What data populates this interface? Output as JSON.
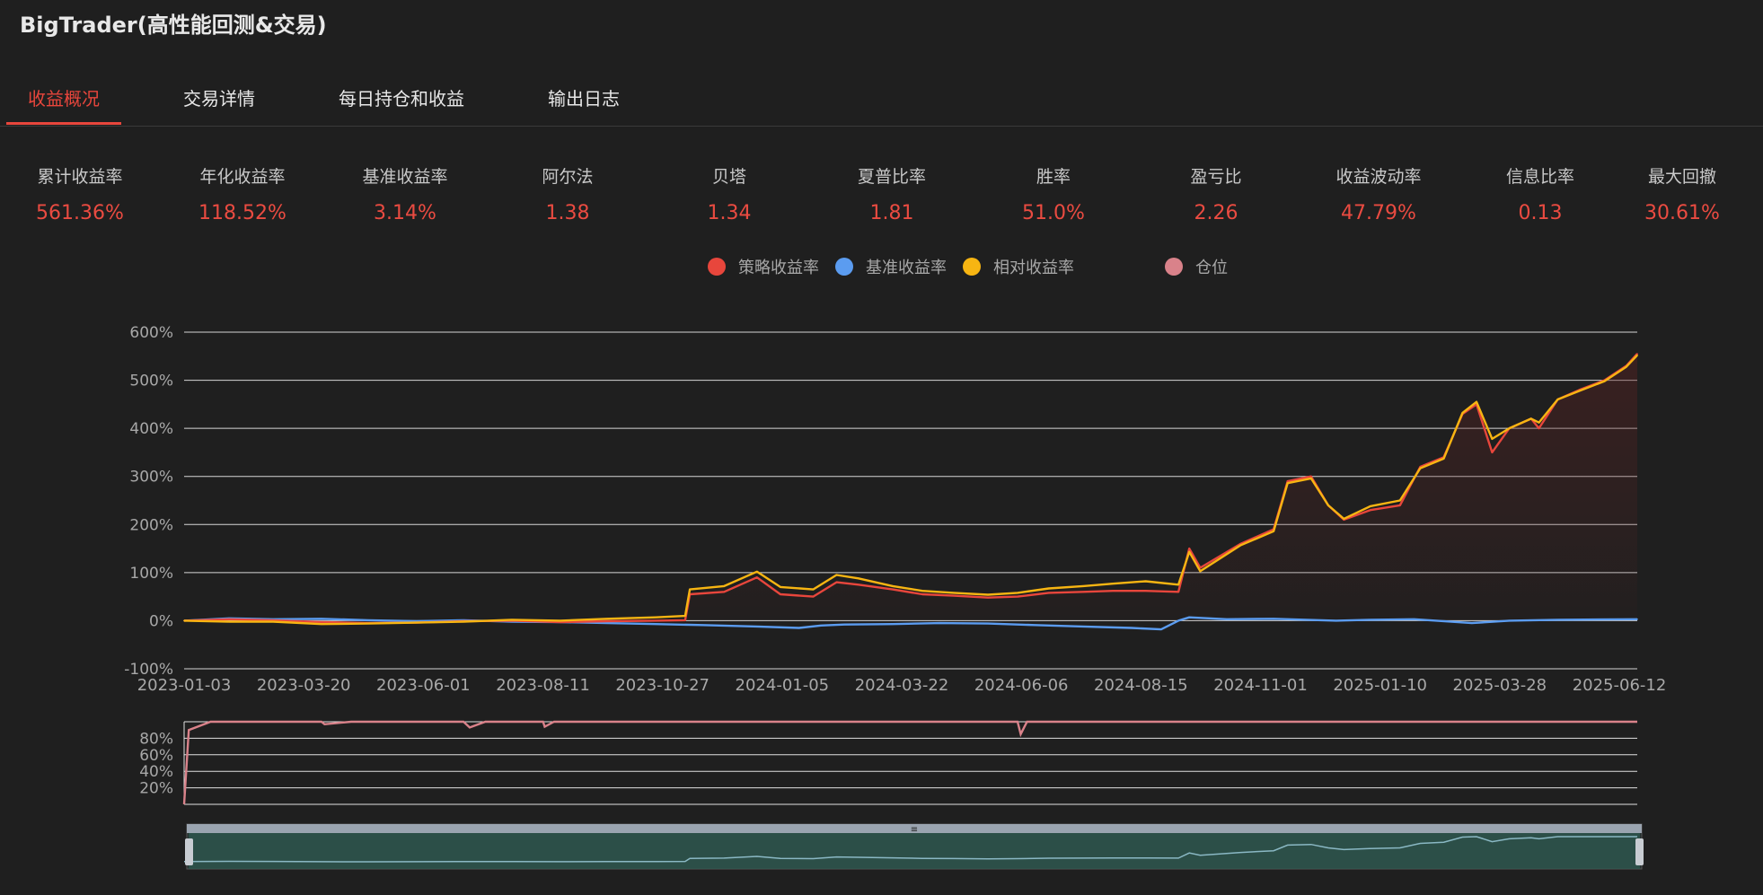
{
  "app": {
    "title": "BigTrader(高性能回测&交易)"
  },
  "tabs": [
    {
      "label": "收益概况",
      "active": true
    },
    {
      "label": "交易详情",
      "active": false
    },
    {
      "label": "每日持仓和收益",
      "active": false
    },
    {
      "label": "输出日志",
      "active": false
    }
  ],
  "metrics": [
    {
      "label": "累计收益率",
      "value": "561.36%"
    },
    {
      "label": "年化收益率",
      "value": "118.52%"
    },
    {
      "label": "基准收益率",
      "value": "3.14%"
    },
    {
      "label": "阿尔法",
      "value": "1.38"
    },
    {
      "label": "贝塔",
      "value": "1.34"
    },
    {
      "label": "夏普比率",
      "value": "1.81"
    },
    {
      "label": "胜率",
      "value": "51.0%"
    },
    {
      "label": "盈亏比",
      "value": "2.26"
    },
    {
      "label": "收益波动率",
      "value": "47.79%"
    },
    {
      "label": "信息比率",
      "value": "0.13"
    },
    {
      "label": "最大回撤",
      "value": "30.61%"
    }
  ],
  "legend": [
    {
      "label": "策略收益率",
      "color": "#e8463c"
    },
    {
      "label": "基准收益率",
      "color": "#5b9cf0"
    },
    {
      "label": "相对收益率",
      "color": "#f7b512"
    },
    {
      "label": "仓位",
      "color": "#d9828a"
    }
  ],
  "chart_data": [
    {
      "type": "line",
      "ylim": [
        -100,
        600
      ],
      "yticks": [
        "-100%",
        "0%",
        "100%",
        "200%",
        "300%",
        "400%",
        "500%",
        "600%"
      ],
      "xticks": [
        "2023-01-03",
        "2023-03-20",
        "2023-06-01",
        "2023-08-11",
        "2023-10-27",
        "2024-01-05",
        "2024-03-22",
        "2024-06-06",
        "2024-08-15",
        "2024-11-01",
        "2025-01-10",
        "2025-03-28",
        "2025-06-12"
      ],
      "x_range": [
        "2023-01-03",
        "2025-07-22"
      ],
      "series": [
        {
          "name": "策略收益率",
          "color": "#e8463c",
          "points": [
            [
              "2023-01-03",
              0
            ],
            [
              "2023-02-01",
              3
            ],
            [
              "2023-03-01",
              1
            ],
            [
              "2023-04-01",
              -3
            ],
            [
              "2023-05-01",
              -5
            ],
            [
              "2023-06-01",
              -4
            ],
            [
              "2023-07-01",
              -1
            ],
            [
              "2023-08-01",
              0
            ],
            [
              "2023-09-01",
              -3
            ],
            [
              "2023-10-01",
              -1
            ],
            [
              "2023-11-01",
              0
            ],
            [
              "2023-11-20",
              1
            ],
            [
              "2023-11-23",
              55
            ],
            [
              "2023-12-15",
              60
            ],
            [
              "2024-01-05",
              90
            ],
            [
              "2024-01-20",
              55
            ],
            [
              "2024-02-10",
              50
            ],
            [
              "2024-02-25",
              80
            ],
            [
              "2024-03-10",
              75
            ],
            [
              "2024-04-01",
              65
            ],
            [
              "2024-04-20",
              55
            ],
            [
              "2024-05-10",
              52
            ],
            [
              "2024-06-01",
              48
            ],
            [
              "2024-06-20",
              50
            ],
            [
              "2024-07-10",
              58
            ],
            [
              "2024-08-01",
              60
            ],
            [
              "2024-08-20",
              62
            ],
            [
              "2024-09-10",
              62
            ],
            [
              "2024-10-01",
              60
            ],
            [
              "2024-10-08",
              150
            ],
            [
              "2024-10-15",
              110
            ],
            [
              "2024-11-10",
              160
            ],
            [
              "2024-12-01",
              190
            ],
            [
              "2024-12-10",
              290
            ],
            [
              "2024-12-25",
              300
            ],
            [
              "2025-01-05",
              240
            ],
            [
              "2025-01-15",
              210
            ],
            [
              "2025-02-01",
              230
            ],
            [
              "2025-02-20",
              240
            ],
            [
              "2025-03-05",
              320
            ],
            [
              "2025-03-20",
              340
            ],
            [
              "2025-04-01",
              430
            ],
            [
              "2025-04-10",
              450
            ],
            [
              "2025-04-20",
              350
            ],
            [
              "2025-05-01",
              400
            ],
            [
              "2025-05-15",
              420
            ],
            [
              "2025-05-20",
              400
            ],
            [
              "2025-06-01",
              460
            ],
            [
              "2025-06-15",
              480
            ],
            [
              "2025-07-01",
              500
            ],
            [
              "2025-07-15",
              530
            ],
            [
              "2025-07-22",
              555
            ]
          ]
        },
        {
          "name": "基准收益率",
          "color": "#5b9cf0",
          "points": [
            [
              "2023-01-03",
              0
            ],
            [
              "2023-02-01",
              5
            ],
            [
              "2023-03-01",
              3
            ],
            [
              "2023-04-01",
              4
            ],
            [
              "2023-05-01",
              1
            ],
            [
              "2023-06-01",
              -1
            ],
            [
              "2023-07-01",
              1
            ],
            [
              "2023-08-01",
              -2
            ],
            [
              "2023-09-01",
              -3
            ],
            [
              "2023-10-01",
              -5
            ],
            [
              "2023-11-01",
              -7
            ],
            [
              "2023-12-01",
              -9
            ],
            [
              "2024-01-05",
              -12
            ],
            [
              "2024-02-01",
              -15
            ],
            [
              "2024-02-15",
              -10
            ],
            [
              "2024-03-01",
              -8
            ],
            [
              "2024-04-01",
              -7
            ],
            [
              "2024-05-01",
              -5
            ],
            [
              "2024-06-01",
              -6
            ],
            [
              "2024-07-01",
              -9
            ],
            [
              "2024-08-01",
              -12
            ],
            [
              "2024-09-01",
              -15
            ],
            [
              "2024-09-20",
              -18
            ],
            [
              "2024-10-01",
              0
            ],
            [
              "2024-10-08",
              7
            ],
            [
              "2024-11-01",
              3
            ],
            [
              "2024-12-01",
              4
            ],
            [
              "2025-01-10",
              0
            ],
            [
              "2025-02-01",
              2
            ],
            [
              "2025-03-01",
              3
            ],
            [
              "2025-04-07",
              -5
            ],
            [
              "2025-05-01",
              0
            ],
            [
              "2025-06-01",
              2
            ],
            [
              "2025-07-22",
              3
            ]
          ]
        },
        {
          "name": "相对收益率",
          "color": "#f7b512",
          "points": [
            [
              "2023-01-03",
              0
            ],
            [
              "2023-02-01",
              -2
            ],
            [
              "2023-03-01",
              -2
            ],
            [
              "2023-04-01",
              -7
            ],
            [
              "2023-05-01",
              -6
            ],
            [
              "2023-06-01",
              -4
            ],
            [
              "2023-07-01",
              -2
            ],
            [
              "2023-08-01",
              2
            ],
            [
              "2023-09-01",
              0
            ],
            [
              "2023-10-01",
              4
            ],
            [
              "2023-11-01",
              7
            ],
            [
              "2023-11-20",
              10
            ],
            [
              "2023-11-23",
              65
            ],
            [
              "2023-12-15",
              72
            ],
            [
              "2024-01-05",
              102
            ],
            [
              "2024-01-20",
              70
            ],
            [
              "2024-02-10",
              65
            ],
            [
              "2024-02-25",
              95
            ],
            [
              "2024-03-10",
              88
            ],
            [
              "2024-04-01",
              72
            ],
            [
              "2024-04-20",
              62
            ],
            [
              "2024-05-10",
              58
            ],
            [
              "2024-06-01",
              54
            ],
            [
              "2024-06-20",
              58
            ],
            [
              "2024-07-10",
              67
            ],
            [
              "2024-08-01",
              72
            ],
            [
              "2024-08-20",
              77
            ],
            [
              "2024-09-10",
              82
            ],
            [
              "2024-10-01",
              75
            ],
            [
              "2024-10-08",
              143
            ],
            [
              "2024-10-15",
              103
            ],
            [
              "2024-11-10",
              157
            ],
            [
              "2024-12-01",
              186
            ],
            [
              "2024-12-10",
              286
            ],
            [
              "2024-12-25",
              296
            ],
            [
              "2025-01-05",
              240
            ],
            [
              "2025-01-15",
              212
            ],
            [
              "2025-02-01",
              238
            ],
            [
              "2025-02-20",
              250
            ],
            [
              "2025-03-05",
              317
            ],
            [
              "2025-03-20",
              337
            ],
            [
              "2025-04-01",
              432
            ],
            [
              "2025-04-10",
              455
            ],
            [
              "2025-04-20",
              378
            ],
            [
              "2025-05-01",
              400
            ],
            [
              "2025-05-15",
              420
            ],
            [
              "2025-05-20",
              412
            ],
            [
              "2025-06-01",
              460
            ],
            [
              "2025-06-15",
              478
            ],
            [
              "2025-07-01",
              498
            ],
            [
              "2025-07-15",
              528
            ],
            [
              "2025-07-22",
              552
            ]
          ]
        }
      ]
    },
    {
      "type": "line",
      "name": "仓位",
      "ylim": [
        0,
        100
      ],
      "yticks": [
        "20%",
        "40%",
        "60%",
        "80%"
      ],
      "color": "#d9828a",
      "points": [
        [
          "2023-01-03",
          0
        ],
        [
          "2023-01-06",
          90
        ],
        [
          "2023-01-20",
          100
        ],
        [
          "2023-04-01",
          100
        ],
        [
          "2023-04-03",
          97
        ],
        [
          "2023-04-20",
          100
        ],
        [
          "2023-07-01",
          100
        ],
        [
          "2023-07-05",
          93
        ],
        [
          "2023-07-15",
          100
        ],
        [
          "2023-08-21",
          100
        ],
        [
          "2023-08-22",
          94
        ],
        [
          "2023-08-28",
          100
        ],
        [
          "2024-06-20",
          100
        ],
        [
          "2024-06-22",
          85
        ],
        [
          "2024-06-26",
          100
        ],
        [
          "2025-07-22",
          100
        ]
      ]
    }
  ]
}
